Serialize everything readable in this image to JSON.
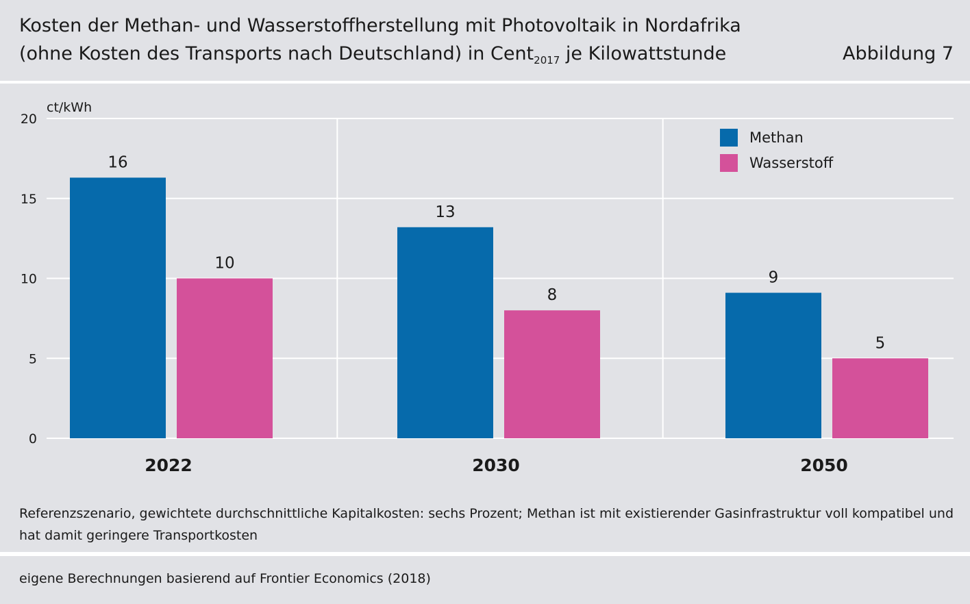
{
  "header": {
    "title_line1": "Kosten der Methan- und Wasserstoffherstellung mit Photovoltaik in Nordafrika",
    "title_line2_before": "(ohne Kosten des Transports nach Deutschland) in Cent",
    "title_line2_sub": "2017",
    "title_line2_after": " je Kilowattstunde",
    "figure_label": "Abbildung 7"
  },
  "chart_data": {
    "type": "bar",
    "title": "",
    "xlabel": "",
    "ylabel": "ct/kWh",
    "ylim": [
      0,
      20
    ],
    "yticks": [
      0,
      5,
      10,
      15,
      20
    ],
    "categories": [
      "2022",
      "2030",
      "2050"
    ],
    "series": [
      {
        "name": "Methan",
        "color": "#066aab",
        "values": [
          16.3,
          13.2,
          9.1
        ],
        "labels": [
          "16",
          "13",
          "9"
        ]
      },
      {
        "name": "Wasserstoff",
        "color": "#d4519a",
        "values": [
          10.0,
          8.0,
          5.0
        ],
        "labels": [
          "10",
          "8",
          "5"
        ]
      }
    ],
    "grid": true,
    "legend": "top-right"
  },
  "note": "Referenzszenario, gewichtete durchschnittliche Kapitalkosten: sechs Prozent; Methan ist mit existierender Gasinfrastruktur voll kompatibel und hat damit geringere Transportkosten",
  "source": "eigene Berechnungen basierend auf Frontier Economics (2018)"
}
